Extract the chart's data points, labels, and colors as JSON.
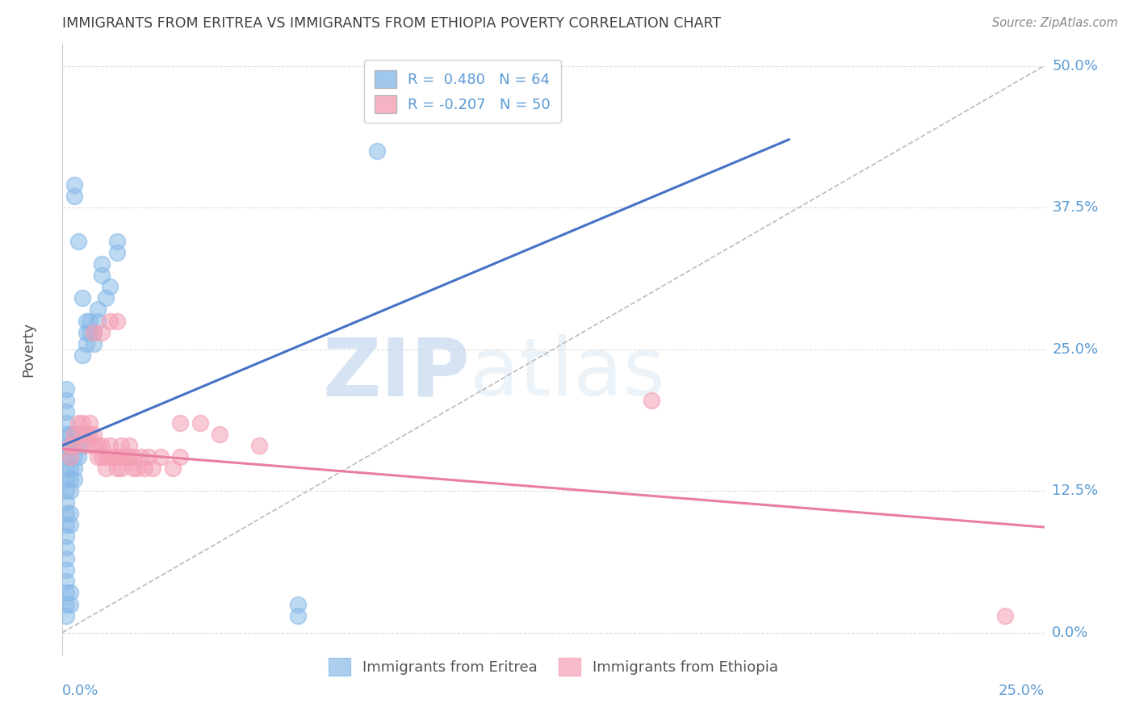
{
  "title": "IMMIGRANTS FROM ERITREA VS IMMIGRANTS FROM ETHIOPIA POVERTY CORRELATION CHART",
  "source": "Source: ZipAtlas.com",
  "ylabel": "Poverty",
  "xlim": [
    0.0,
    0.25
  ],
  "ylim": [
    -0.02,
    0.52
  ],
  "y_tick_values": [
    0.0,
    0.125,
    0.25,
    0.375,
    0.5
  ],
  "y_tick_labels": [
    "0.0%",
    "12.5%",
    "25.0%",
    "37.5%",
    "50.0%"
  ],
  "x_tick_left": "0.0%",
  "x_tick_right": "25.0%",
  "eritrea_color": "#89BAE8",
  "ethiopia_color": "#F4A0B5",
  "eritrea_line_color": "#4472C4",
  "ethiopia_line_color": "#E87EA1",
  "eritrea_R": 0.48,
  "eritrea_N": 64,
  "ethiopia_R": -0.207,
  "ethiopia_N": 50,
  "legend_label_eritrea": "Immigrants from Eritrea",
  "legend_label_ethiopia": "Immigrants from Ethiopia",
  "watermark_zip": "ZIP",
  "watermark_atlas": "atlas",
  "background_color": "#ffffff",
  "grid_color": "#dedede",
  "tick_label_color": "#5B9BD5",
  "title_color": "#404040",
  "source_color": "#888888",
  "blue_line": [
    [
      0.0,
      0.165
    ],
    [
      0.185,
      0.435
    ]
  ],
  "pink_line": [
    [
      0.0,
      0.162
    ],
    [
      0.25,
      0.093
    ]
  ],
  "diag_line": [
    [
      0.0,
      0.0
    ],
    [
      0.25,
      0.5
    ]
  ],
  "eritrea_scatter": [
    [
      0.001,
      0.145
    ],
    [
      0.001,
      0.155
    ],
    [
      0.001,
      0.165
    ],
    [
      0.001,
      0.175
    ],
    [
      0.001,
      0.185
    ],
    [
      0.001,
      0.195
    ],
    [
      0.001,
      0.205
    ],
    [
      0.001,
      0.215
    ],
    [
      0.001,
      0.135
    ],
    [
      0.001,
      0.125
    ],
    [
      0.001,
      0.115
    ],
    [
      0.001,
      0.105
    ],
    [
      0.001,
      0.095
    ],
    [
      0.001,
      0.085
    ],
    [
      0.001,
      0.075
    ],
    [
      0.001,
      0.065
    ],
    [
      0.001,
      0.055
    ],
    [
      0.001,
      0.045
    ],
    [
      0.002,
      0.155
    ],
    [
      0.002,
      0.165
    ],
    [
      0.002,
      0.175
    ],
    [
      0.002,
      0.145
    ],
    [
      0.002,
      0.135
    ],
    [
      0.002,
      0.125
    ],
    [
      0.002,
      0.105
    ],
    [
      0.002,
      0.095
    ],
    [
      0.003,
      0.165
    ],
    [
      0.003,
      0.155
    ],
    [
      0.003,
      0.175
    ],
    [
      0.003,
      0.145
    ],
    [
      0.003,
      0.135
    ],
    [
      0.004,
      0.165
    ],
    [
      0.004,
      0.155
    ],
    [
      0.004,
      0.175
    ],
    [
      0.005,
      0.165
    ],
    [
      0.005,
      0.175
    ],
    [
      0.005,
      0.245
    ],
    [
      0.006,
      0.255
    ],
    [
      0.006,
      0.265
    ],
    [
      0.006,
      0.275
    ],
    [
      0.007,
      0.265
    ],
    [
      0.007,
      0.275
    ],
    [
      0.008,
      0.265
    ],
    [
      0.008,
      0.255
    ],
    [
      0.009,
      0.275
    ],
    [
      0.009,
      0.285
    ],
    [
      0.01,
      0.315
    ],
    [
      0.01,
      0.325
    ],
    [
      0.011,
      0.295
    ],
    [
      0.012,
      0.305
    ],
    [
      0.014,
      0.335
    ],
    [
      0.014,
      0.345
    ],
    [
      0.003,
      0.395
    ],
    [
      0.003,
      0.385
    ],
    [
      0.004,
      0.345
    ],
    [
      0.005,
      0.295
    ],
    [
      0.06,
      0.015
    ],
    [
      0.06,
      0.025
    ],
    [
      0.08,
      0.425
    ],
    [
      0.001,
      0.035
    ],
    [
      0.001,
      0.025
    ],
    [
      0.001,
      0.015
    ],
    [
      0.002,
      0.025
    ],
    [
      0.002,
      0.035
    ]
  ],
  "ethiopia_scatter": [
    [
      0.002,
      0.155
    ],
    [
      0.002,
      0.165
    ],
    [
      0.003,
      0.175
    ],
    [
      0.003,
      0.165
    ],
    [
      0.004,
      0.185
    ],
    [
      0.005,
      0.175
    ],
    [
      0.005,
      0.185
    ],
    [
      0.006,
      0.175
    ],
    [
      0.006,
      0.165
    ],
    [
      0.007,
      0.175
    ],
    [
      0.007,
      0.185
    ],
    [
      0.008,
      0.175
    ],
    [
      0.008,
      0.165
    ],
    [
      0.009,
      0.155
    ],
    [
      0.009,
      0.165
    ],
    [
      0.01,
      0.155
    ],
    [
      0.01,
      0.165
    ],
    [
      0.011,
      0.155
    ],
    [
      0.011,
      0.145
    ],
    [
      0.012,
      0.155
    ],
    [
      0.012,
      0.165
    ],
    [
      0.013,
      0.155
    ],
    [
      0.014,
      0.145
    ],
    [
      0.014,
      0.155
    ],
    [
      0.015,
      0.165
    ],
    [
      0.015,
      0.155
    ],
    [
      0.015,
      0.145
    ],
    [
      0.016,
      0.155
    ],
    [
      0.017,
      0.165
    ],
    [
      0.017,
      0.155
    ],
    [
      0.018,
      0.145
    ],
    [
      0.018,
      0.155
    ],
    [
      0.019,
      0.145
    ],
    [
      0.02,
      0.155
    ],
    [
      0.021,
      0.145
    ],
    [
      0.022,
      0.155
    ],
    [
      0.023,
      0.145
    ],
    [
      0.025,
      0.155
    ],
    [
      0.028,
      0.145
    ],
    [
      0.03,
      0.155
    ],
    [
      0.008,
      0.265
    ],
    [
      0.01,
      0.265
    ],
    [
      0.012,
      0.275
    ],
    [
      0.014,
      0.275
    ],
    [
      0.03,
      0.185
    ],
    [
      0.035,
      0.185
    ],
    [
      0.04,
      0.175
    ],
    [
      0.05,
      0.165
    ],
    [
      0.15,
      0.205
    ],
    [
      0.24,
      0.015
    ]
  ]
}
